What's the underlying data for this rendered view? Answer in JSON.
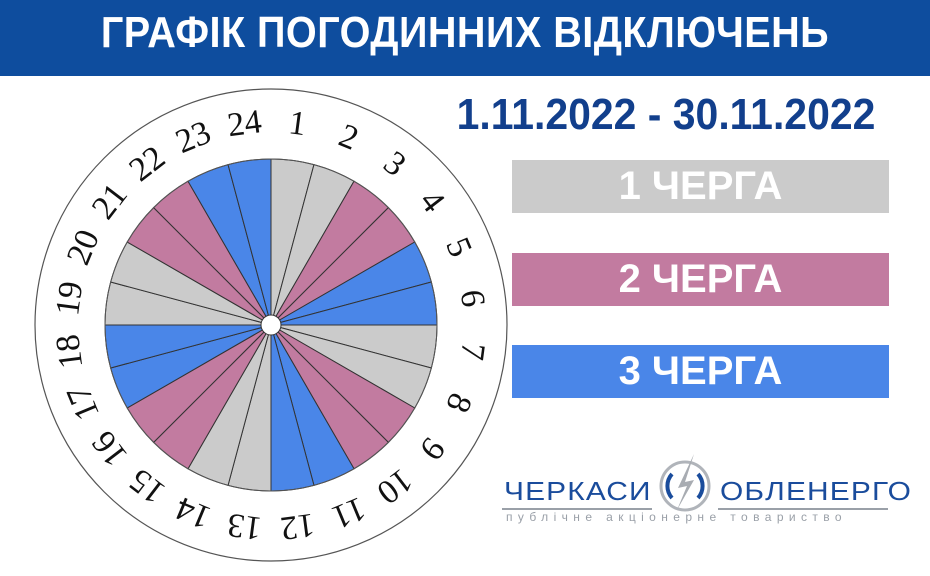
{
  "title": "ГРАФІК ПОГОДИННИХ ВІДКЛЮЧЕНЬ",
  "date_range": "1.11.2022 - 30.11.2022",
  "colors": {
    "header": "#0e4d9e",
    "date": "#123f8c",
    "queue_1": "#cbcbcb",
    "queue_2": "#c27ba0",
    "queue_3": "#4a86e8"
  },
  "legend": [
    {
      "label": "1 ЧЕРГА",
      "queue": 1
    },
    {
      "label": "2 ЧЕРГА",
      "queue": 2
    },
    {
      "label": "3 ЧЕРГА",
      "queue": 3
    }
  ],
  "wheel": {
    "hours": [
      "1",
      "2",
      "3",
      "4",
      "5",
      "6",
      "7",
      "8",
      "9",
      "10",
      "11",
      "12",
      "13",
      "14",
      "15",
      "16",
      "17",
      "18",
      "19",
      "20",
      "21",
      "22",
      "23",
      "24"
    ],
    "queue_by_hour": [
      1,
      1,
      2,
      2,
      3,
      3,
      1,
      1,
      2,
      2,
      3,
      3,
      1,
      1,
      2,
      2,
      3,
      3,
      1,
      1,
      2,
      2,
      3,
      3
    ]
  },
  "logo": {
    "left": "ЧЕРКАСИ",
    "right": "ОБЛЕНЕРГО",
    "subtitle": "публічне акціонерне товариство"
  }
}
